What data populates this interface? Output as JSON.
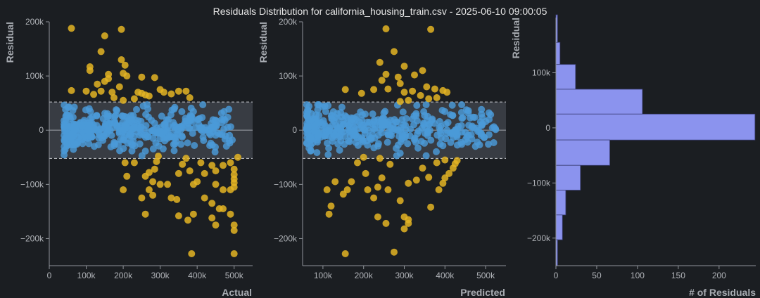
{
  "title": "Residuals Distribution for california_housing_train.csv - 2025-06-10 09:00:05",
  "colors": {
    "background": "#1b1e22",
    "inlier": "#4a9ad8",
    "outlier": "#e3b423",
    "band_fill": "#3a3e46",
    "band_edge": "#c9ccd1",
    "zero_line": "#7d8188",
    "histogram_fill": "#8b93ee",
    "histogram_edge": "#3d417a"
  },
  "chart_data": [
    {
      "type": "scatter",
      "xlabel": "Actual",
      "ylabel": "Residual",
      "xlim": [
        0,
        550000
      ],
      "ylim": [
        -250000,
        200000
      ],
      "x_ticks": [
        0,
        100000,
        200000,
        300000,
        400000,
        500000
      ],
      "x_tick_labels": [
        "0",
        "100k",
        "200k",
        "300k",
        "400k",
        "500k"
      ],
      "y_ticks": [
        -200000,
        -100000,
        0,
        100000,
        200000
      ],
      "y_tick_labels": [
        "−200k",
        "−100k",
        "0",
        "100k",
        "200k"
      ],
      "band": [
        -52000,
        52000
      ],
      "series": [
        {
          "role": "outliers",
          "points": [
            [
              60000,
              188000
            ],
            [
              150000,
              174000
            ],
            [
              195000,
              186000
            ],
            [
              140000,
              145000
            ],
            [
              195000,
              130000
            ],
            [
              110000,
              117000
            ],
            [
              205000,
              120000
            ],
            [
              110000,
              110000
            ],
            [
              160000,
              103000
            ],
            [
              210000,
              100000
            ],
            [
              150000,
              90000
            ],
            [
              160000,
              95000
            ],
            [
              190000,
              80000
            ],
            [
              200000,
              105000
            ],
            [
              130000,
              85000
            ],
            [
              250000,
              98000
            ],
            [
              285000,
              97000
            ],
            [
              60000,
              73000
            ],
            [
              100000,
              72000
            ],
            [
              120000,
              66000
            ],
            [
              140000,
              72000
            ],
            [
              170000,
              70000
            ],
            [
              240000,
              70000
            ],
            [
              250000,
              68000
            ],
            [
              260000,
              65000
            ],
            [
              270000,
              63000
            ],
            [
              300000,
              75000
            ],
            [
              310000,
              70000
            ],
            [
              330000,
              67000
            ],
            [
              350000,
              72000
            ],
            [
              370000,
              72000
            ],
            [
              380000,
              60000
            ],
            [
              230000,
              58000
            ],
            [
              200000,
              55000
            ],
            [
              175000,
              60000
            ],
            [
              295000,
              -48000
            ],
            [
              290000,
              -58000
            ],
            [
              285000,
              -72000
            ],
            [
              270000,
              -78000
            ],
            [
              280000,
              -95000
            ],
            [
              270000,
              -110000
            ],
            [
              230000,
              -60000
            ],
            [
              260000,
              -85000
            ],
            [
              370000,
              -52000
            ],
            [
              360000,
              -63000
            ],
            [
              380000,
              -75000
            ],
            [
              350000,
              -80000
            ],
            [
              400000,
              -95000
            ],
            [
              390000,
              -100000
            ],
            [
              420000,
              -80000
            ],
            [
              410000,
              -60000
            ],
            [
              440000,
              -65000
            ],
            [
              450000,
              -75000
            ],
            [
              470000,
              -65000
            ],
            [
              490000,
              -60000
            ],
            [
              500000,
              -72000
            ],
            [
              500000,
              -82000
            ],
            [
              500000,
              -90000
            ],
            [
              500000,
              -97000
            ],
            [
              500000,
              -105000
            ],
            [
              510000,
              -50000
            ],
            [
              490000,
              -110000
            ],
            [
              205000,
              -60000
            ],
            [
              210000,
              -85000
            ],
            [
              200000,
              -110000
            ],
            [
              250000,
              -125000
            ],
            [
              260000,
              -155000
            ],
            [
              280000,
              -120000
            ],
            [
              300000,
              -100000
            ],
            [
              320000,
              -100000
            ],
            [
              330000,
              -125000
            ],
            [
              345000,
              -128000
            ],
            [
              350000,
              -158000
            ],
            [
              375000,
              -166000
            ],
            [
              390000,
              -155000
            ],
            [
              420000,
              -125000
            ],
            [
              440000,
              -135000
            ],
            [
              460000,
              -145000
            ],
            [
              470000,
              -145000
            ],
            [
              490000,
              -155000
            ],
            [
              500000,
              -175000
            ],
            [
              500000,
              -185000
            ],
            [
              500000,
              -228000
            ],
            [
              385000,
              -228000
            ],
            [
              440000,
              -162000
            ],
            [
              450000,
              -175000
            ],
            [
              470000,
              -110000
            ],
            [
              450000,
              -100000
            ]
          ]
        },
        {
          "role": "inliers",
          "generated": true,
          "x_range": [
            40000,
            500000
          ],
          "count": 420,
          "seed": 7
        }
      ]
    },
    {
      "type": "scatter",
      "xlabel": "Predicted",
      "ylabel": "Residual",
      "xlim": [
        50000,
        550000
      ],
      "ylim": [
        -250000,
        200000
      ],
      "x_ticks": [
        100000,
        200000,
        300000,
        400000,
        500000
      ],
      "x_tick_labels": [
        "100k",
        "200k",
        "300k",
        "400k",
        "500k"
      ],
      "y_ticks": [
        -200000,
        -100000,
        0,
        100000,
        200000
      ],
      "y_tick_labels": [
        "−200k",
        "−100k",
        "0",
        "100k",
        "200k"
      ],
      "band": [
        -52000,
        52000
      ],
      "series": [
        {
          "role": "outliers",
          "points": [
            [
              255000,
              187000
            ],
            [
              365000,
              186000
            ],
            [
              275000,
              145000
            ],
            [
              240000,
              125000
            ],
            [
              300000,
              118000
            ],
            [
              345000,
              110000
            ],
            [
              255000,
              103000
            ],
            [
              245000,
              92000
            ],
            [
              285000,
              98000
            ],
            [
              325000,
              102000
            ],
            [
              290000,
              86000
            ],
            [
              355000,
              80000
            ],
            [
              195000,
              68000
            ],
            [
              155000,
              75000
            ],
            [
              225000,
              75000
            ],
            [
              260000,
              76000
            ],
            [
              300000,
              70000
            ],
            [
              320000,
              72000
            ],
            [
              340000,
              64000
            ],
            [
              375000,
              76000
            ],
            [
              395000,
              73000
            ],
            [
              405000,
              70000
            ],
            [
              380000,
              60000
            ],
            [
              360000,
              58000
            ],
            [
              310000,
              55000
            ],
            [
              290000,
              53000
            ],
            [
              200000,
              -50000
            ],
            [
              240000,
              -52000
            ],
            [
              185000,
              -60000
            ],
            [
              205000,
              -80000
            ],
            [
              265000,
              -63000
            ],
            [
              245000,
              -88000
            ],
            [
              235000,
              -105000
            ],
            [
              210000,
              -110000
            ],
            [
              170000,
              -95000
            ],
            [
              110000,
              -110000
            ],
            [
              130000,
              -95000
            ],
            [
              160000,
              -110000
            ],
            [
              225000,
              -125000
            ],
            [
              260000,
              -110000
            ],
            [
              290000,
              -130000
            ],
            [
              310000,
              -98000
            ],
            [
              330000,
              -92000
            ],
            [
              360000,
              -87000
            ],
            [
              385000,
              -110000
            ],
            [
              395000,
              -98000
            ],
            [
              400000,
              -88000
            ],
            [
              410000,
              -80000
            ],
            [
              420000,
              -70000
            ],
            [
              425000,
              -62000
            ],
            [
              430000,
              -56000
            ],
            [
              400000,
              -55000
            ],
            [
              380000,
              -60000
            ],
            [
              345000,
              -70000
            ],
            [
              300000,
              -160000
            ],
            [
              310000,
              -172000
            ],
            [
              255000,
              -172000
            ],
            [
              235000,
              -160000
            ],
            [
              115000,
              -155000
            ],
            [
              150000,
              -118000
            ],
            [
              120000,
              -140000
            ],
            [
              155000,
              -228000
            ],
            [
              275000,
              -225000
            ],
            [
              300000,
              -182000
            ],
            [
              310000,
              -165000
            ],
            [
              365000,
              -142000
            ]
          ]
        },
        {
          "role": "inliers",
          "generated": true,
          "x_range": [
            60000,
            525000
          ],
          "count": 420,
          "seed": 11
        }
      ]
    },
    {
      "type": "bar",
      "orientation": "horizontal",
      "xlabel": "# of Residuals",
      "ylabel": "Residual",
      "xlim": [
        0,
        245
      ],
      "ylim": [
        -250000,
        200000
      ],
      "x_ticks": [
        0,
        50,
        100,
        150,
        200
      ],
      "x_tick_labels": [
        "0",
        "50",
        "100",
        "150",
        "200"
      ],
      "y_ticks": [
        -200000,
        -100000,
        0,
        100000
      ],
      "y_tick_labels": [
        "−200k",
        "−100k",
        "0",
        "100k"
      ],
      "bins": [
        {
          "from": 155000,
          "to": 205000,
          "count": 2
        },
        {
          "from": 115000,
          "to": 155000,
          "count": 5
        },
        {
          "from": 70000,
          "to": 115000,
          "count": 24
        },
        {
          "from": 25000,
          "to": 70000,
          "count": 106
        },
        {
          "from": -22000,
          "to": 25000,
          "count": 244
        },
        {
          "from": -68000,
          "to": -22000,
          "count": 66
        },
        {
          "from": -113000,
          "to": -68000,
          "count": 30
        },
        {
          "from": -158000,
          "to": -113000,
          "count": 12
        },
        {
          "from": -203000,
          "to": -158000,
          "count": 8
        },
        {
          "from": -250000,
          "to": -203000,
          "count": 2
        }
      ]
    }
  ]
}
